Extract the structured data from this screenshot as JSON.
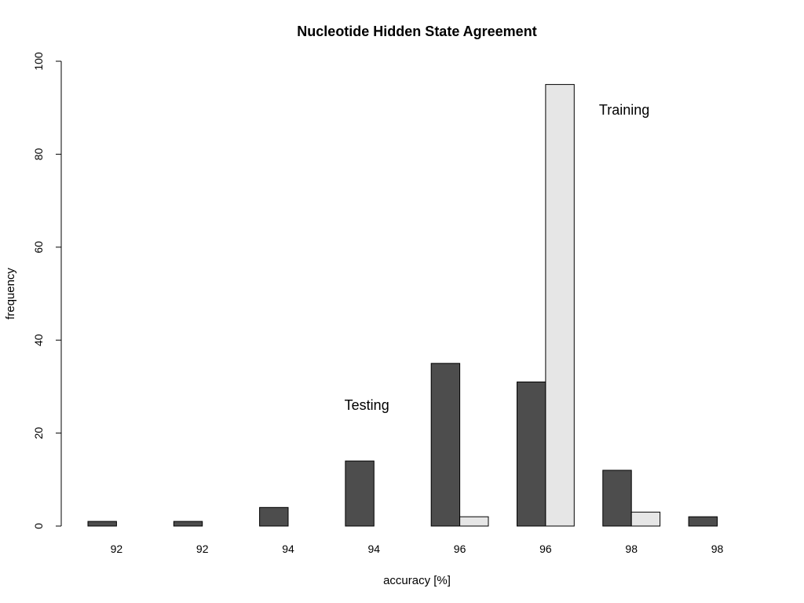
{
  "chart_data": {
    "type": "bar",
    "title": "Nucleotide Hidden State Agreement",
    "xlabel": "accuracy [%]",
    "ylabel": "frequency",
    "categories": [
      "92",
      "92",
      "94",
      "94",
      "96",
      "96",
      "98",
      "98"
    ],
    "series": [
      {
        "color": "#4d4d4d",
        "values": [
          1,
          1,
          4,
          14,
          35,
          31,
          12,
          2
        ]
      },
      {
        "color": "#e6e6e6",
        "values": [
          0,
          0,
          0,
          0,
          2,
          95,
          3,
          0
        ]
      }
    ],
    "ylim": [
      0,
      100
    ],
    "yticks": [
      "0",
      "20",
      "40",
      "60",
      "80",
      "100"
    ],
    "annotations": [
      {
        "text": "Testing",
        "x_index": 3,
        "y": 26
      },
      {
        "text": "Training",
        "x_index": 6,
        "y": 89.5
      }
    ],
    "grid": false,
    "legend": "none"
  }
}
